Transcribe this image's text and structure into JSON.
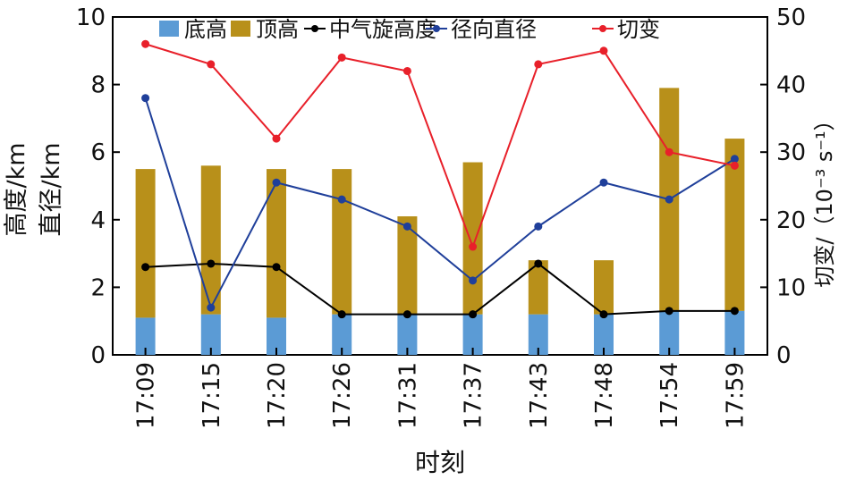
{
  "chart_data": {
    "type": "bar",
    "categories": [
      "17:09",
      "17:15",
      "17:20",
      "17:26",
      "17:31",
      "17:37",
      "17:43",
      "17:48",
      "17:54",
      "17:59"
    ],
    "xlabel": "时刻",
    "ylabel_left_line1": "高度/km",
    "ylabel_left_line2": "直径/km",
    "ylabel_right": "切变/（10⁻³ s⁻¹）",
    "ylim_left": [
      0,
      10
    ],
    "ylim_right": [
      0,
      50
    ],
    "yticks_left": [
      0,
      2,
      4,
      6,
      8,
      10
    ],
    "yticks_right": [
      0,
      10,
      20,
      30,
      40,
      50
    ],
    "stacked": true,
    "series": [
      {
        "name": "底高",
        "kind": "bar",
        "axis": "left",
        "color": "#5b9bd5",
        "values": [
          1.1,
          1.2,
          1.1,
          1.2,
          1.2,
          1.2,
          1.2,
          1.2,
          1.3,
          1.3
        ]
      },
      {
        "name": "顶高",
        "kind": "bar",
        "axis": "left",
        "color": "#b8901a",
        "values": [
          5.5,
          5.6,
          5.5,
          5.5,
          4.1,
          5.7,
          2.8,
          2.8,
          7.9,
          6.4
        ]
      },
      {
        "name": "中气旋高度",
        "kind": "line",
        "axis": "left",
        "color": "#000000",
        "values": [
          2.6,
          2.7,
          2.6,
          1.2,
          1.2,
          1.2,
          2.7,
          1.2,
          1.3,
          1.3
        ]
      },
      {
        "name": "径向直径",
        "kind": "line",
        "axis": "left",
        "color": "#1f3f9a",
        "values": [
          7.6,
          1.4,
          5.1,
          4.6,
          3.8,
          2.2,
          3.8,
          5.1,
          4.6,
          5.8
        ]
      },
      {
        "name": "切变",
        "kind": "line",
        "axis": "right",
        "color": "#e8202a",
        "values": [
          46,
          43,
          32,
          44,
          42,
          16,
          43,
          45,
          30,
          28
        ]
      }
    ],
    "legend": "top"
  }
}
